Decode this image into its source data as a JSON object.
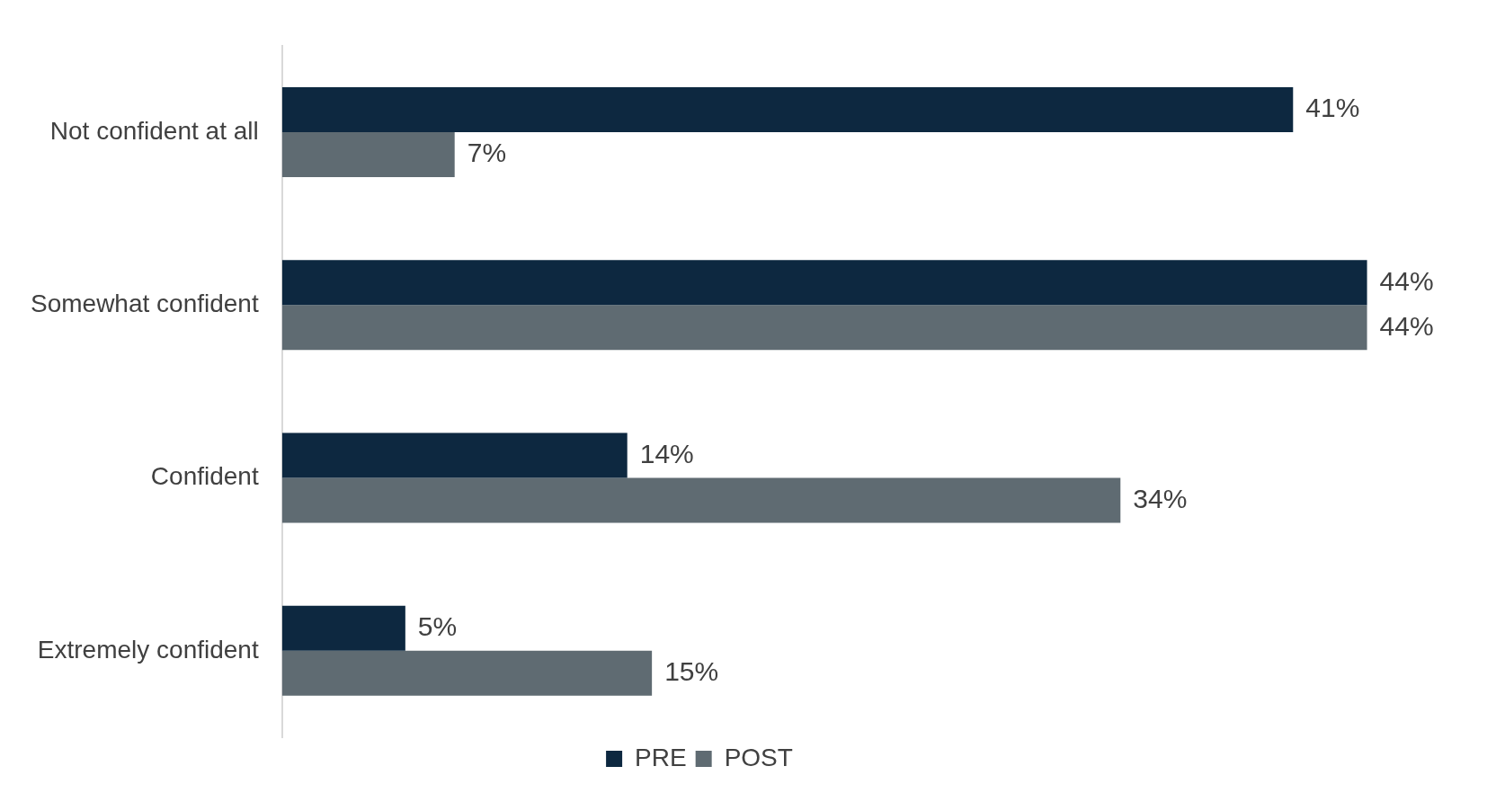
{
  "chart_data": {
    "type": "bar",
    "orientation": "horizontal",
    "categories": [
      "Not confident at all",
      "Somewhat confident",
      "Confident",
      "Extremely confident"
    ],
    "series": [
      {
        "name": "PRE",
        "color": "#0d2840",
        "values": [
          41,
          44,
          14,
          5
        ],
        "value_labels": [
          "41%",
          "44%",
          "14%",
          "5%"
        ]
      },
      {
        "name": "POST",
        "color": "#5f6b72",
        "values": [
          7,
          44,
          34,
          15
        ],
        "value_labels": [
          "7%",
          "44%",
          "34%",
          "15%"
        ]
      }
    ],
    "legend": "bottom",
    "grid": false
  }
}
